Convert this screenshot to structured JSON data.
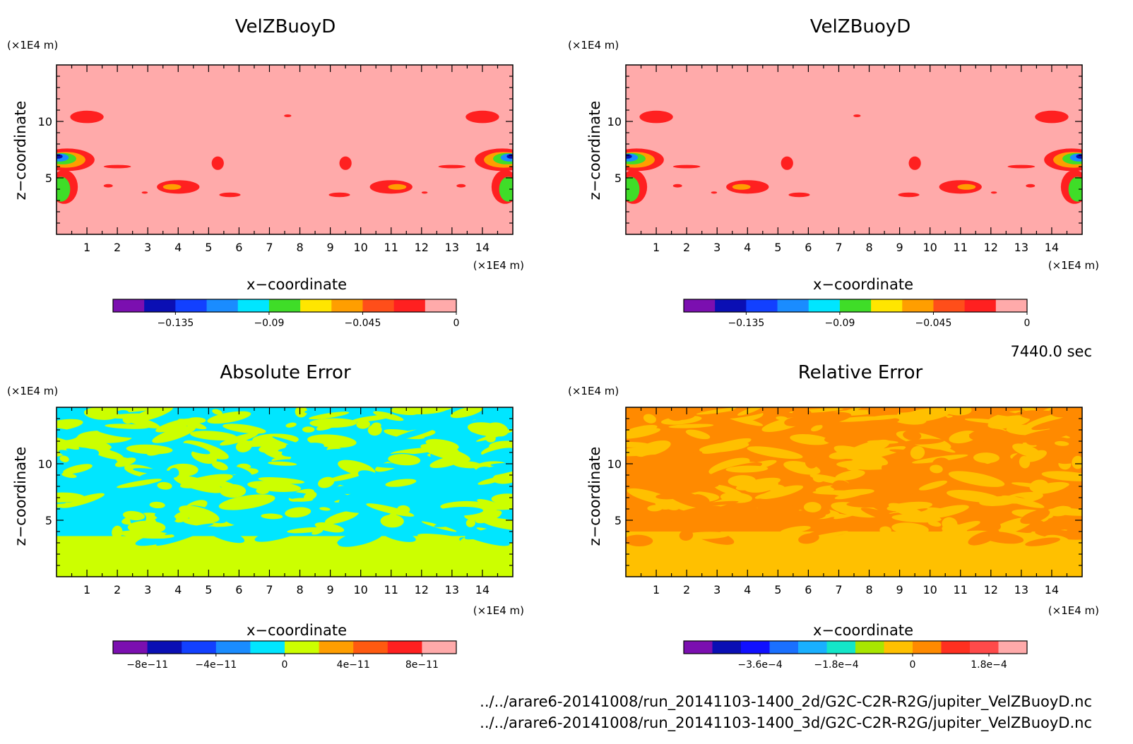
{
  "figure": {
    "time_label": "7440.0 sec",
    "file_paths": [
      "../../arare6-20141008/run_20141103-1400_2d/G2C-C2R-R2G/jupiter_VelZBuoyD.nc",
      "../../arare6-20141008/run_20141103-1400_3d/G2C-C2R-R2G/jupiter_VelZBuoyD.nc"
    ]
  },
  "chart_data": [
    {
      "type": "heatmap",
      "title": "VelZBuoyD",
      "xlabel": "x−coordinate",
      "ylabel": "z−coordinate",
      "x_unit": "(×1E4 m)",
      "y_unit": "(×1E4 m)",
      "xlim": [
        0,
        15
      ],
      "ylim": [
        0,
        15
      ],
      "xticks": [
        1,
        2,
        3,
        4,
        5,
        6,
        7,
        8,
        9,
        10,
        11,
        12,
        13,
        14
      ],
      "yticks": [
        5,
        10
      ],
      "colorbar": {
        "colors": [
          "#7b0fb0",
          "#0a0fb4",
          "#1240ff",
          "#1a8cff",
          "#00e6ff",
          "#3fdd28",
          "#ffe600",
          "#ff9e00",
          "#ff4e1a",
          "#ff2020",
          "#ffaaaa"
        ],
        "range": [
          -0.165,
          0
        ],
        "ticks": [
          -0.135,
          -0.09,
          -0.045,
          0
        ],
        "tick_labels": [
          "−0.135",
          "−0.09",
          "−0.045",
          "0"
        ]
      },
      "background_level": "#ffaaaa",
      "features": [
        {
          "x": 1.0,
          "z": 10.4,
          "rx": 0.55,
          "rz": 0.55,
          "color": "#ff2020"
        },
        {
          "x": 7.6,
          "z": 10.5,
          "rx": 0.12,
          "rz": 0.12,
          "color": "#ff2020"
        },
        {
          "x": 14.0,
          "z": 10.4,
          "rx": 0.55,
          "rz": 0.55,
          "color": "#ff2020"
        },
        {
          "x": 0.35,
          "z": 6.6,
          "rx": 0.9,
          "rz": 1.0,
          "color": "#ff2020"
        },
        {
          "x": 0.3,
          "z": 6.6,
          "rx": 0.65,
          "rz": 0.7,
          "color": "#ff9e00"
        },
        {
          "x": 0.2,
          "z": 6.7,
          "rx": 0.45,
          "rz": 0.5,
          "color": "#3fdd28"
        },
        {
          "x": 0.1,
          "z": 6.8,
          "rx": 0.3,
          "rz": 0.35,
          "color": "#1a8cff"
        },
        {
          "x": 0.05,
          "z": 6.9,
          "rx": 0.15,
          "rz": 0.2,
          "color": "#0a0fb4"
        },
        {
          "x": 0.25,
          "z": 4.2,
          "rx": 0.45,
          "rz": 1.5,
          "color": "#ff2020"
        },
        {
          "x": 0.15,
          "z": 4.0,
          "rx": 0.3,
          "rz": 1.1,
          "color": "#3fdd28"
        },
        {
          "x": 14.65,
          "z": 6.6,
          "rx": 0.9,
          "rz": 1.0,
          "color": "#ff2020"
        },
        {
          "x": 14.7,
          "z": 6.6,
          "rx": 0.65,
          "rz": 0.7,
          "color": "#ff9e00"
        },
        {
          "x": 14.8,
          "z": 6.7,
          "rx": 0.45,
          "rz": 0.5,
          "color": "#3fdd28"
        },
        {
          "x": 14.9,
          "z": 6.8,
          "rx": 0.3,
          "rz": 0.35,
          "color": "#1a8cff"
        },
        {
          "x": 14.95,
          "z": 6.9,
          "rx": 0.15,
          "rz": 0.2,
          "color": "#0a0fb4"
        },
        {
          "x": 14.75,
          "z": 4.2,
          "rx": 0.45,
          "rz": 1.5,
          "color": "#ff2020"
        },
        {
          "x": 14.85,
          "z": 4.0,
          "rx": 0.3,
          "rz": 1.1,
          "color": "#3fdd28"
        },
        {
          "x": 2.0,
          "z": 6.0,
          "rx": 0.45,
          "rz": 0.15,
          "color": "#ff2020"
        },
        {
          "x": 5.3,
          "z": 6.3,
          "rx": 0.2,
          "rz": 0.6,
          "color": "#ff2020"
        },
        {
          "x": 9.5,
          "z": 6.3,
          "rx": 0.2,
          "rz": 0.6,
          "color": "#ff2020"
        },
        {
          "x": 13.0,
          "z": 6.0,
          "rx": 0.45,
          "rz": 0.15,
          "color": "#ff2020"
        },
        {
          "x": 1.7,
          "z": 4.3,
          "rx": 0.15,
          "rz": 0.15,
          "color": "#ff2020"
        },
        {
          "x": 2.9,
          "z": 3.7,
          "rx": 0.1,
          "rz": 0.1,
          "color": "#ff2020"
        },
        {
          "x": 4.0,
          "z": 4.2,
          "rx": 0.7,
          "rz": 0.6,
          "color": "#ff2020"
        },
        {
          "x": 3.8,
          "z": 4.2,
          "rx": 0.3,
          "rz": 0.25,
          "color": "#ff9e00"
        },
        {
          "x": 5.7,
          "z": 3.5,
          "rx": 0.35,
          "rz": 0.2,
          "color": "#ff2020"
        },
        {
          "x": 9.3,
          "z": 3.5,
          "rx": 0.35,
          "rz": 0.2,
          "color": "#ff2020"
        },
        {
          "x": 11.0,
          "z": 4.2,
          "rx": 0.7,
          "rz": 0.6,
          "color": "#ff2020"
        },
        {
          "x": 11.2,
          "z": 4.2,
          "rx": 0.3,
          "rz": 0.25,
          "color": "#ff9e00"
        },
        {
          "x": 12.1,
          "z": 3.7,
          "rx": 0.1,
          "rz": 0.1,
          "color": "#ff2020"
        },
        {
          "x": 13.3,
          "z": 4.3,
          "rx": 0.15,
          "rz": 0.15,
          "color": "#ff2020"
        }
      ]
    },
    {
      "type": "heatmap",
      "title": "VelZBuoyD",
      "xlabel": "x−coordinate",
      "ylabel": "z−coordinate",
      "x_unit": "(×1E4 m)",
      "y_unit": "(×1E4 m)",
      "xlim": [
        0,
        15
      ],
      "ylim": [
        0,
        15
      ],
      "xticks": [
        1,
        2,
        3,
        4,
        5,
        6,
        7,
        8,
        9,
        10,
        11,
        12,
        13,
        14
      ],
      "yticks": [
        5,
        10
      ],
      "colorbar": {
        "colors": [
          "#7b0fb0",
          "#0a0fb4",
          "#1240ff",
          "#1a8cff",
          "#00e6ff",
          "#3fdd28",
          "#ffe600",
          "#ff9e00",
          "#ff4e1a",
          "#ff2020",
          "#ffaaaa"
        ],
        "range": [
          -0.165,
          0
        ],
        "ticks": [
          -0.135,
          -0.09,
          -0.045,
          0
        ],
        "tick_labels": [
          "−0.135",
          "−0.09",
          "−0.045",
          "0"
        ]
      },
      "background_level": "#ffaaaa",
      "features": "same_as_panel_1"
    },
    {
      "type": "heatmap",
      "title": "Absolute Error",
      "xlabel": "x−coordinate",
      "ylabel": "z−coordinate",
      "x_unit": "(×1E4 m)",
      "y_unit": "(×1E4 m)",
      "xlim": [
        0,
        15
      ],
      "ylim": [
        0,
        15
      ],
      "xticks": [
        1,
        2,
        3,
        4,
        5,
        6,
        7,
        8,
        9,
        10,
        11,
        12,
        13,
        14
      ],
      "yticks": [
        5,
        10
      ],
      "colorbar": {
        "colors": [
          "#7b0fb0",
          "#0a0fb4",
          "#1240ff",
          "#1a8cff",
          "#00e6ff",
          "#ccff00",
          "#ff9e00",
          "#ff5a10",
          "#ff2020",
          "#ffaaaa"
        ],
        "range": [
          -1e-10,
          1e-10
        ],
        "ticks": [
          -8e-11,
          -4e-11,
          0,
          4e-11,
          8e-11
        ],
        "tick_labels": [
          "−8e−11",
          "−4e−11",
          "0",
          "4e−11",
          "8e−11"
        ]
      },
      "levels_present": [
        "#00e6ff",
        "#ccff00"
      ]
    },
    {
      "type": "heatmap",
      "title": "Relative Error",
      "xlabel": "x−coordinate",
      "ylabel": "z−coordinate",
      "x_unit": "(×1E4 m)",
      "y_unit": "(×1E4 m)",
      "xlim": [
        0,
        15
      ],
      "ylim": [
        0,
        15
      ],
      "xticks": [
        1,
        2,
        3,
        4,
        5,
        6,
        7,
        8,
        9,
        10,
        11,
        12,
        13,
        14
      ],
      "yticks": [
        5,
        10
      ],
      "colorbar": {
        "colors": [
          "#7b0fb0",
          "#0a0fb4",
          "#1010ff",
          "#1a70ff",
          "#19b0ff",
          "#14e6c8",
          "#a8e600",
          "#ffc000",
          "#ff8a00",
          "#ff3020",
          "#ff4a4a",
          "#ffaaaa"
        ],
        "range": [
          -0.00054,
          0.00027
        ],
        "ticks": [
          -0.00036,
          -0.00018,
          0,
          0.00018
        ],
        "tick_labels": [
          "−3.6e−4",
          "−1.8e−4",
          "0",
          "1.8e−4"
        ]
      },
      "levels_present": [
        "#ff8a00",
        "#ffc000"
      ]
    }
  ]
}
